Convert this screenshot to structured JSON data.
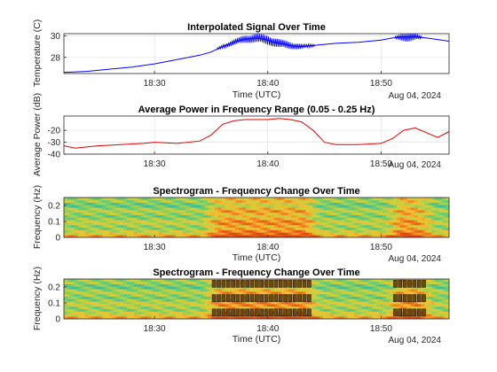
{
  "chart_data": [
    {
      "type": "line",
      "title": "Interpolated Signal Over Time",
      "xlabel": "Time (UTC)",
      "ylabel": "Temperature (C)",
      "date_label": "Aug 04, 2024",
      "x_ticks": [
        "18:30",
        "18:40",
        "18:50"
      ],
      "xlim": [
        "18:22",
        "18:56"
      ],
      "ylim": [
        26.5,
        30.2
      ],
      "y_ticks": [
        28,
        30
      ],
      "grid": true,
      "color": "#0000ff",
      "series": [
        {
          "x": [
            "18:22",
            "18:24",
            "18:26",
            "18:28",
            "18:30",
            "18:32",
            "18:34",
            "18:35",
            "18:36",
            "18:37",
            "18:38",
            "18:39",
            "18:40",
            "18:41",
            "18:42",
            "18:43",
            "18:44",
            "18:46",
            "18:48",
            "18:50",
            "18:51",
            "18:52",
            "18:53",
            "18:54",
            "18:56"
          ],
          "values": [
            26.6,
            26.7,
            26.9,
            27.1,
            27.4,
            27.8,
            28.2,
            28.5,
            29.0,
            29.4,
            29.7,
            29.8,
            29.6,
            29.3,
            29.1,
            29.0,
            29.1,
            29.3,
            29.4,
            29.6,
            29.8,
            29.9,
            29.9,
            29.8,
            29.5
          ]
        }
      ]
    },
    {
      "type": "line",
      "title": "Average Power in Frequency Range (0.05 - 0.25 Hz)",
      "xlabel": "",
      "ylabel": "Average Power (dB)",
      "date_label": "Aug 04, 2024",
      "x_ticks": [
        "18:30",
        "18:40",
        "18:50"
      ],
      "xlim": [
        "18:22",
        "18:56"
      ],
      "ylim": [
        -40,
        -8
      ],
      "y_ticks": [
        -40,
        -30,
        -20
      ],
      "grid": true,
      "color": "#e00000",
      "series": [
        {
          "x": [
            "18:22",
            "18:23",
            "18:25",
            "18:27",
            "18:29",
            "18:30",
            "18:32",
            "18:34",
            "18:35",
            "18:36",
            "18:37",
            "18:38",
            "18:40",
            "18:41",
            "18:42",
            "18:43",
            "18:44",
            "18:45",
            "18:46",
            "18:48",
            "18:50",
            "18:51",
            "18:52",
            "18:53",
            "18:54",
            "18:55",
            "18:56"
          ],
          "values": [
            -33,
            -35,
            -33,
            -32,
            -31,
            -30,
            -31,
            -29,
            -24,
            -15,
            -12,
            -11,
            -11,
            -10,
            -11,
            -13,
            -20,
            -30,
            -32,
            -32,
            -31,
            -27,
            -20,
            -18,
            -22,
            -26,
            -21
          ]
        }
      ]
    },
    {
      "type": "heatmap",
      "title": "Spectrogram - Frequency Change Over Time",
      "xlabel": "Time (UTC)",
      "ylabel": "Frequency (Hz)",
      "date_label": "Aug 04, 2024",
      "x_ticks": [
        "18:30",
        "18:40",
        "18:50"
      ],
      "xlim": [
        "18:22",
        "18:56"
      ],
      "ylim": [
        0,
        0.25
      ],
      "y_ticks": [
        0,
        0.1,
        0.2
      ],
      "high_power_intervals": [
        [
          "18:35",
          "18:44"
        ],
        [
          "18:51",
          "18:54"
        ]
      ],
      "colormap": "parula"
    },
    {
      "type": "heatmap",
      "title": "Spectrogram - Frequency Change Over Time",
      "xlabel": "Time (UTC)",
      "ylabel": "Frequency (Hz)",
      "date_label": "Aug 04, 2024",
      "x_ticks": [
        "18:30",
        "18:40",
        "18:50"
      ],
      "xlim": [
        "18:22",
        "18:56"
      ],
      "ylim": [
        0,
        0.25
      ],
      "y_ticks": [
        0,
        0.1,
        0.2
      ],
      "high_power_intervals": [
        [
          "18:35",
          "18:44"
        ],
        [
          "18:51",
          "18:54"
        ]
      ],
      "marker_frequencies": [
        0.04,
        0.13,
        0.22
      ],
      "colormap": "parula"
    }
  ]
}
